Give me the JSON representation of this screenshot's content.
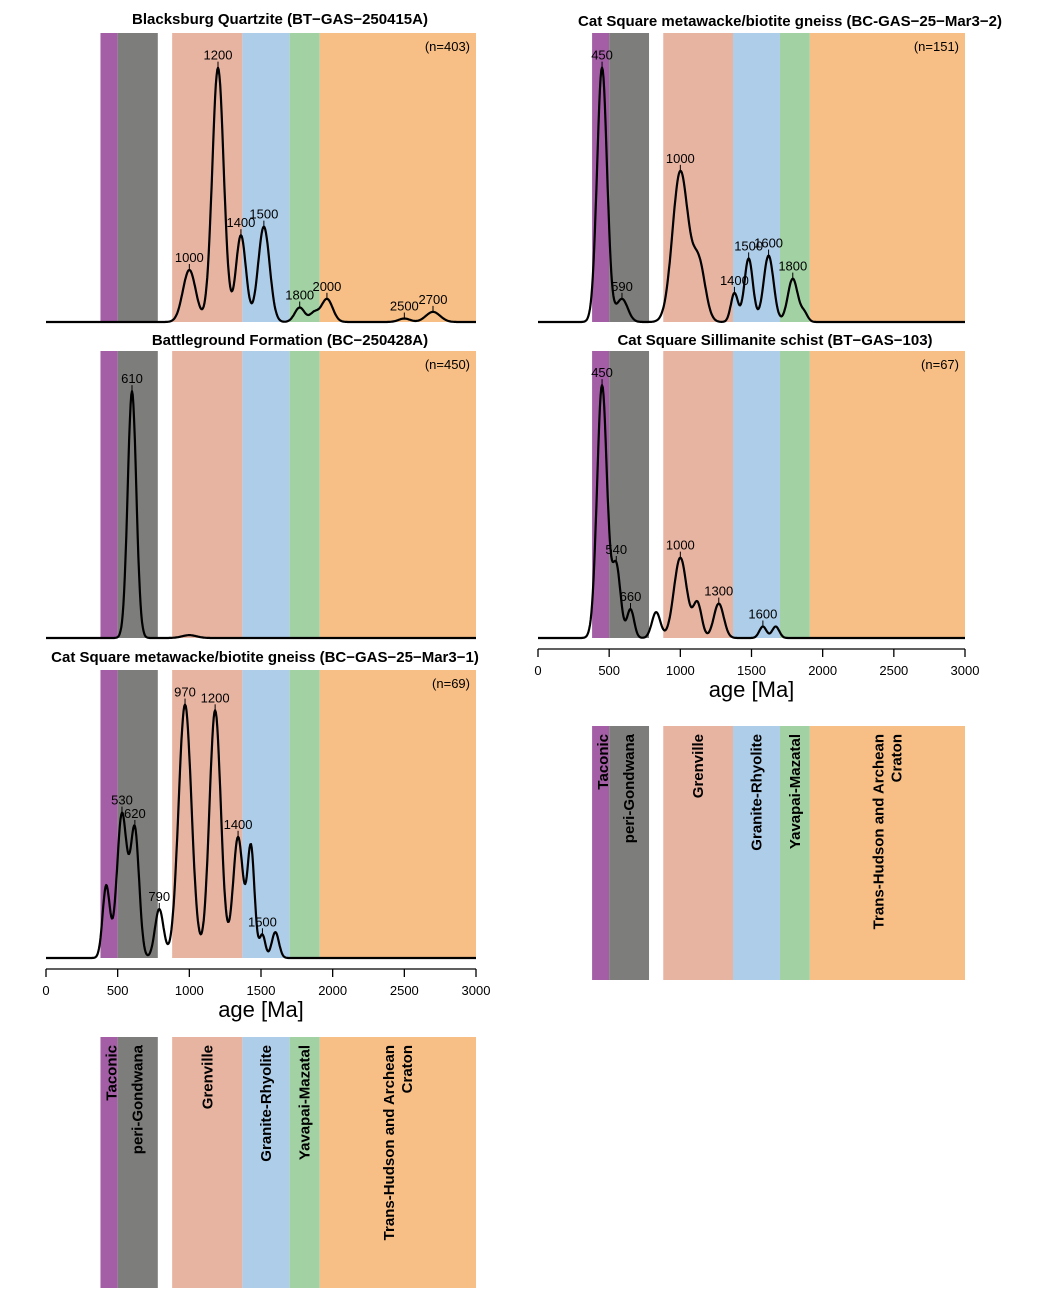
{
  "colors": {
    "Taconic": "#a35ea6",
    "peri-Gondwana": "#7d7d7b",
    "Grenville": "#e8b4a2",
    "Granite-Rhyolite": "#aecde9",
    "Yavapai-Mazatal": "#a2d1a4",
    "Trans-Hudson and Archean Craton": "#f7bf86",
    "curve": "#000000"
  },
  "axis": {
    "label": "age [Ma]",
    "ticks": [
      0,
      500,
      1000,
      1500,
      2000,
      2500,
      3000
    ],
    "range": [
      0,
      3000
    ]
  },
  "provinces": [
    {
      "name": "Taconic",
      "range": [
        380,
        500
      ]
    },
    {
      "name": "peri-Gondwana",
      "range": [
        500,
        780
      ]
    },
    {
      "name": "Grenville",
      "range": [
        880,
        1370
      ]
    },
    {
      "name": "Granite-Rhyolite",
      "range": [
        1370,
        1700
      ]
    },
    {
      "name": "Yavapai-Mazatal",
      "range": [
        1700,
        1910
      ]
    },
    {
      "name": "Trans-Hudson and Archean Craton",
      "range": [
        1910,
        3000
      ]
    }
  ],
  "legend": {
    "labels": [
      "Taconic",
      "peri-Gondwana",
      "Grenville",
      "Granite-Rhyolite",
      "Yavapai-Mazatal",
      "Trans-Hudson and Archean\nCraton"
    ]
  },
  "chart_data": [
    {
      "type": "line",
      "title": "Blacksburg Quartzite (BT−GAS−250415A)",
      "n_label": "(n=403)",
      "peaks": [
        {
          "x": 1000,
          "y": 0.18,
          "w": 45,
          "label": "1000"
        },
        {
          "x": 1200,
          "y": 0.88,
          "w": 40,
          "label": "1200"
        },
        {
          "x": 1360,
          "y": 0.3,
          "w": 35,
          "label": "1400"
        },
        {
          "x": 1520,
          "y": 0.33,
          "w": 40,
          "label": "1500"
        },
        {
          "x": 1770,
          "y": 0.05,
          "w": 35,
          "label": "1800"
        },
        {
          "x": 1870,
          "y": 0.03,
          "w": 30,
          "label": ""
        },
        {
          "x": 1960,
          "y": 0.08,
          "w": 40,
          "label": "2000"
        },
        {
          "x": 2500,
          "y": 0.012,
          "w": 40,
          "label": "2500"
        },
        {
          "x": 2700,
          "y": 0.035,
          "w": 50,
          "label": "2700"
        }
      ]
    },
    {
      "type": "line",
      "title": "Battleground Formation (BC−250428A)",
      "n_label": "(n=450)",
      "peaks": [
        {
          "x": 600,
          "y": 0.86,
          "w": 30,
          "label": "610"
        },
        {
          "x": 1000,
          "y": 0.01,
          "w": 50,
          "label": ""
        }
      ]
    },
    {
      "type": "line",
      "title": "Cat Square metawacke/biotite gneiss (BC−GAS−25−Mar3−1)",
      "n_label": "(n=69)",
      "peaks": [
        {
          "x": 420,
          "y": 0.25,
          "w": 25,
          "label": ""
        },
        {
          "x": 530,
          "y": 0.5,
          "w": 35,
          "label": "530"
        },
        {
          "x": 620,
          "y": 0.44,
          "w": 30,
          "label": "620"
        },
        {
          "x": 790,
          "y": 0.17,
          "w": 30,
          "label": "790"
        },
        {
          "x": 970,
          "y": 0.88,
          "w": 45,
          "label": "970"
        },
        {
          "x": 1180,
          "y": 0.86,
          "w": 40,
          "label": "1200"
        },
        {
          "x": 1340,
          "y": 0.42,
          "w": 35,
          "label": "1400"
        },
        {
          "x": 1430,
          "y": 0.38,
          "w": 25,
          "label": ""
        },
        {
          "x": 1510,
          "y": 0.08,
          "w": 20,
          "label": "1500"
        },
        {
          "x": 1600,
          "y": 0.09,
          "w": 25,
          "label": ""
        }
      ]
    },
    {
      "type": "line",
      "title": "Cat Square metawacke/biotite gneiss (BC-GAS−25−Mar3−2)",
      "n_label": "(n=151)",
      "peaks": [
        {
          "x": 450,
          "y": 0.88,
          "w": 35,
          "label": "450"
        },
        {
          "x": 590,
          "y": 0.08,
          "w": 40,
          "label": "590"
        },
        {
          "x": 1000,
          "y": 0.52,
          "w": 55,
          "label": "1000"
        },
        {
          "x": 1130,
          "y": 0.2,
          "w": 45,
          "label": ""
        },
        {
          "x": 1380,
          "y": 0.1,
          "w": 25,
          "label": "1400"
        },
        {
          "x": 1480,
          "y": 0.22,
          "w": 30,
          "label": "1500"
        },
        {
          "x": 1620,
          "y": 0.23,
          "w": 35,
          "label": "1600"
        },
        {
          "x": 1790,
          "y": 0.15,
          "w": 35,
          "label": "1800"
        },
        {
          "x": 1870,
          "y": 0.03,
          "w": 25,
          "label": ""
        }
      ]
    },
    {
      "type": "line",
      "title": "Cat Square Sillimanite schist (BT−GAS−103)",
      "n_label": "(n=67)",
      "peaks": [
        {
          "x": 450,
          "y": 0.88,
          "w": 35,
          "label": "450"
        },
        {
          "x": 550,
          "y": 0.25,
          "w": 30,
          "label": "540"
        },
        {
          "x": 650,
          "y": 0.1,
          "w": 25,
          "label": "660"
        },
        {
          "x": 830,
          "y": 0.09,
          "w": 30,
          "label": ""
        },
        {
          "x": 1000,
          "y": 0.28,
          "w": 45,
          "label": "1000"
        },
        {
          "x": 1120,
          "y": 0.12,
          "w": 30,
          "label": ""
        },
        {
          "x": 1270,
          "y": 0.12,
          "w": 35,
          "label": "1300"
        },
        {
          "x": 1580,
          "y": 0.04,
          "w": 25,
          "label": "1600"
        },
        {
          "x": 1670,
          "y": 0.04,
          "w": 25,
          "label": ""
        }
      ]
    }
  ]
}
